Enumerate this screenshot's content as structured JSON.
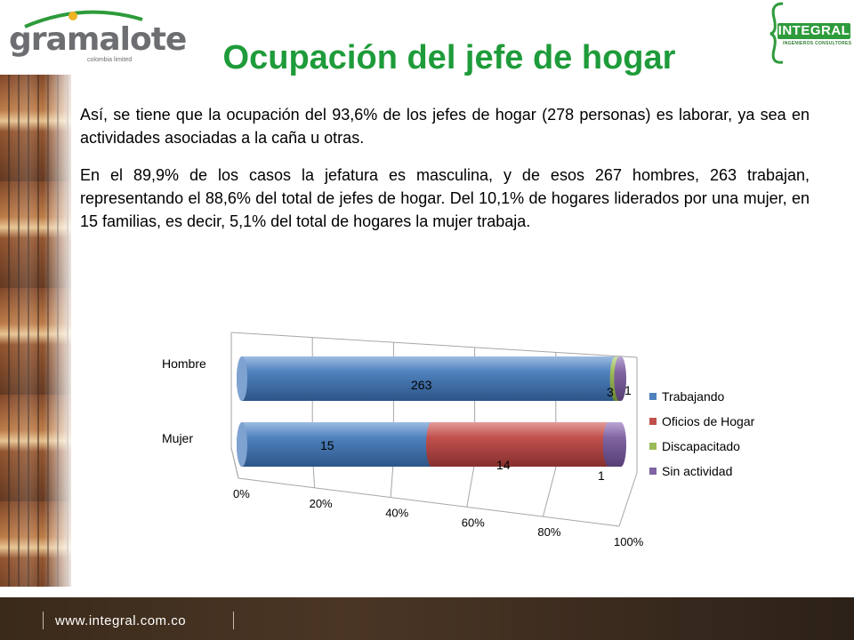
{
  "logos": {
    "gramalote": {
      "word": "gramalote",
      "sub": "colombia limited"
    },
    "integral": {
      "brand": "INTEGRAL",
      "tag": "INGENIEROS CONSULTORES"
    }
  },
  "title": "Ocupación del jefe de hogar",
  "paragraphs": [
    "Así, se tiene que la ocupación del 93,6% de los jefes de hogar (278 personas) es laborar, ya sea en actividades asociadas a la caña u otras.",
    "En el 89,9% de los casos la jefatura es masculina, y de esos 267 hombres, 263 trabajan, representando el 88,6% del total de jefes de hogar. Del 10,1% de hogares liderados por una mujer, en 15 familias, es decir, 5,1% del total de hogares la mujer trabaja."
  ],
  "chart_data": {
    "type": "bar",
    "orientation": "horizontal",
    "stacked": "percent",
    "style": "3d-cylinder",
    "categories": [
      "Hombre",
      "Mujer"
    ],
    "series": [
      {
        "name": "Trabajando",
        "values": [
          263,
          15
        ],
        "color": "#4f81bd"
      },
      {
        "name": "Oficios de Hogar",
        "values": [
          0,
          14
        ],
        "color": "#c0504d"
      },
      {
        "name": "Discapacitado",
        "values": [
          3,
          0
        ],
        "color": "#9bbb59"
      },
      {
        "name": "Sin actividad",
        "values": [
          1,
          1
        ],
        "color": "#8064a2"
      }
    ],
    "data_labels": [
      {
        "category": "Hombre",
        "series": "Trabajando",
        "text": "263"
      },
      {
        "category": "Hombre",
        "series": "Discapacitado",
        "text": "3"
      },
      {
        "category": "Hombre",
        "series": "Sin actividad",
        "text": "1"
      },
      {
        "category": "Mujer",
        "series": "Trabajando",
        "text": "15"
      },
      {
        "category": "Mujer",
        "series": "Oficios de Hogar",
        "text": "14"
      },
      {
        "category": "Mujer",
        "series": "Sin actividad",
        "text": "1"
      }
    ],
    "x_ticks": [
      "0%",
      "20%",
      "40%",
      "60%",
      "80%",
      "100%"
    ],
    "xlim": [
      0,
      100
    ],
    "grid": true,
    "legend_position": "right"
  },
  "footer": {
    "url": "www.integral.com.co"
  }
}
